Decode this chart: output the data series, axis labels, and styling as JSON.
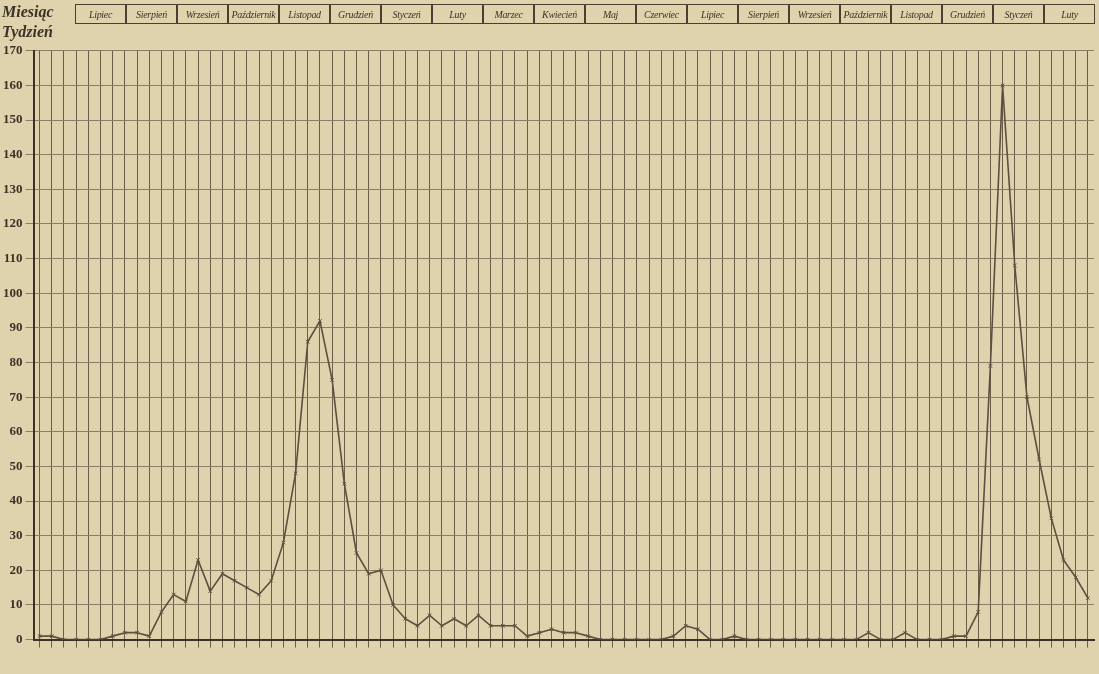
{
  "chart_data": {
    "type": "line",
    "ylabel": "Miesiąc",
    "xlabel": "Tydzień",
    "annotations": [
      "Lipiec",
      "Sierpień",
      "Wrzesień",
      "Październik",
      "Listopad",
      "Grudzień",
      "Styczeń",
      "Luty",
      "Marzec",
      "Kwiecień",
      "Maj",
      "Czerwiec",
      "Lipiec",
      "Sierpień",
      "Wrzesień",
      "Październik",
      "Listopad",
      "Grudzień",
      "Styczeń",
      "Luty"
    ],
    "categories": [
      null,
      null,
      null,
      null,
      null,
      null,
      null,
      null,
      null,
      null,
      null,
      null,
      null,
      null,
      null,
      null,
      null,
      null,
      null,
      null,
      null,
      null,
      null,
      null,
      null,
      null,
      null,
      null,
      null,
      null,
      null,
      null,
      null,
      null,
      null,
      null,
      null,
      null,
      null,
      null,
      null,
      null,
      null,
      null,
      null,
      null,
      null,
      null,
      null,
      null,
      null,
      null,
      null,
      null,
      null,
      null,
      null,
      null,
      null,
      null,
      null,
      null,
      null,
      null,
      null,
      null,
      null,
      null,
      null,
      null,
      null,
      null,
      null,
      null,
      null,
      null,
      null,
      null,
      null,
      null,
      null,
      null,
      null,
      null,
      null,
      null,
      null
    ],
    "series": [
      {
        "color": "#5a5040",
        "values": [
          1,
          1,
          0,
          0,
          0,
          0,
          1,
          2,
          2,
          1,
          8,
          13,
          11,
          23,
          14,
          19,
          17,
          15,
          13,
          17,
          28,
          48,
          86,
          92,
          75,
          45,
          25,
          19,
          20,
          10,
          6,
          4,
          7,
          4,
          6,
          4,
          7,
          4,
          4,
          4,
          1,
          2,
          3,
          2,
          2,
          1,
          0,
          0,
          0,
          0,
          0,
          0,
          1,
          4,
          3,
          0,
          0,
          1,
          0,
          0,
          0,
          0,
          0,
          0,
          0,
          0,
          0,
          0,
          2,
          0,
          0,
          2,
          0,
          0,
          0,
          1,
          1,
          8,
          79,
          160,
          108,
          70,
          52,
          35,
          23,
          18,
          12
        ]
      }
    ],
    "ylim": [
      0,
      170
    ],
    "yticks": [
      0,
      10,
      20,
      30,
      40,
      50,
      60,
      70,
      80,
      90,
      100,
      110,
      120,
      130,
      140,
      150,
      160,
      170
    ],
    "grid": true,
    "marker": "cross",
    "line_style": "solid",
    "legend": false
  }
}
